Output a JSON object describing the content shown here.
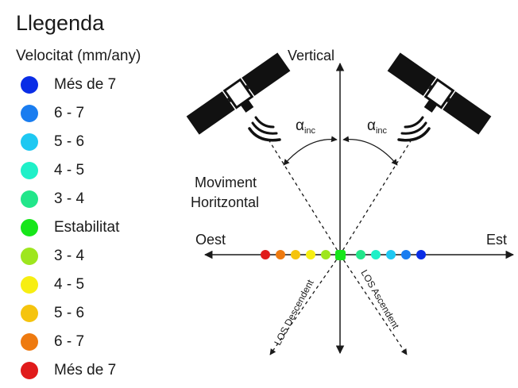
{
  "legend": {
    "title": "Llegenda",
    "subtitle": "Velocitat (mm/any)",
    "items": [
      {
        "label": "Més de 7",
        "color": "#0a2de6"
      },
      {
        "label": "6 - 7",
        "color": "#1a7df0"
      },
      {
        "label": "5 - 6",
        "color": "#1ec8f2"
      },
      {
        "label": "4 - 5",
        "color": "#1ff0c8"
      },
      {
        "label": "3 - 4",
        "color": "#22e68a"
      },
      {
        "label": "Estabilitat",
        "color": "#17e61a"
      },
      {
        "label": "3 - 4",
        "color": "#9ee61e"
      },
      {
        "label": "4 - 5",
        "color": "#f7ee12"
      },
      {
        "label": "5 - 6",
        "color": "#f5c40e"
      },
      {
        "label": "6 - 7",
        "color": "#ee7a10"
      },
      {
        "label": "Més de 7",
        "color": "#e01b1b"
      }
    ]
  },
  "diagram": {
    "vertical_label": "Vertical",
    "west_label": "Oest",
    "east_label": "Est",
    "horizontal_movement_line1": "Moviment",
    "horizontal_movement_line2": "Horitzontal",
    "angle_symbol": "α",
    "angle_subscript": "inc",
    "los_descending": "LOS Descendent",
    "los_ascending": "LOS Ascendent",
    "axis_dot_colors": [
      "#e01b1b",
      "#ee7a10",
      "#f5c40e",
      "#f7ee12",
      "#9ee61e",
      "#17e61a",
      "#22e68a",
      "#1ff0c8",
      "#1ec8f2",
      "#1a7df0",
      "#0a2de6"
    ]
  }
}
